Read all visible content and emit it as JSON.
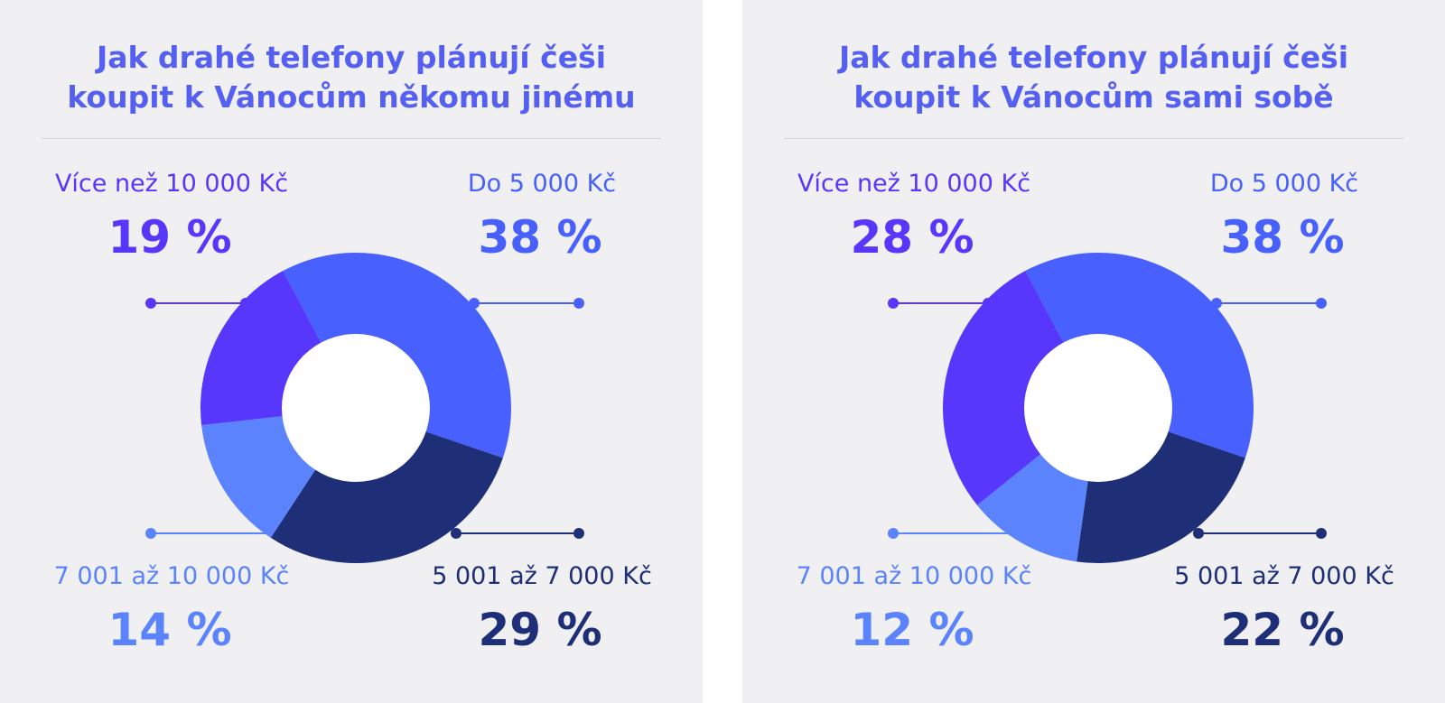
{
  "colors": {
    "background": "#f0f0f2",
    "title": "#5560f2",
    "divider": "#d3d3db",
    "segments": [
      "#4760fe",
      "#1e2f78",
      "#5b83fd",
      "#5737fb"
    ]
  },
  "panels": [
    {
      "title_line1": "Jak drahé telefony plánují češi",
      "title_line2": "koupit k Vánocům někomu jinému",
      "chart_data": {
        "type": "pie",
        "title": "Jak drahé telefony plánují češi koupit k Vánocům někomu jinému",
        "categories": [
          "Do 5 000 Kč",
          "5 001 až 7 000 Kč",
          "7 001 až 10 000 Kč",
          "Více než 10 000 Kč"
        ],
        "values": [
          38,
          29,
          14,
          19
        ],
        "labels": [
          "38 %",
          "29 %",
          "14 %",
          "19 %"
        ],
        "unit": "%",
        "donut": true
      }
    },
    {
      "title_line1": "Jak drahé telefony plánují češi",
      "title_line2": "koupit k Vánocům sami sobě",
      "chart_data": {
        "type": "pie",
        "title": "Jak drahé telefony plánují češi koupit k Vánocům sami sobě",
        "categories": [
          "Do 5 000 Kč",
          "5 001 až 7 000 Kč",
          "7 001 až 10 000 Kč",
          "Více než 10 000 Kč"
        ],
        "values": [
          38,
          22,
          12,
          28
        ],
        "labels": [
          "38 %",
          "22 %",
          "12 %",
          "28 %"
        ],
        "unit": "%",
        "donut": true
      }
    }
  ]
}
